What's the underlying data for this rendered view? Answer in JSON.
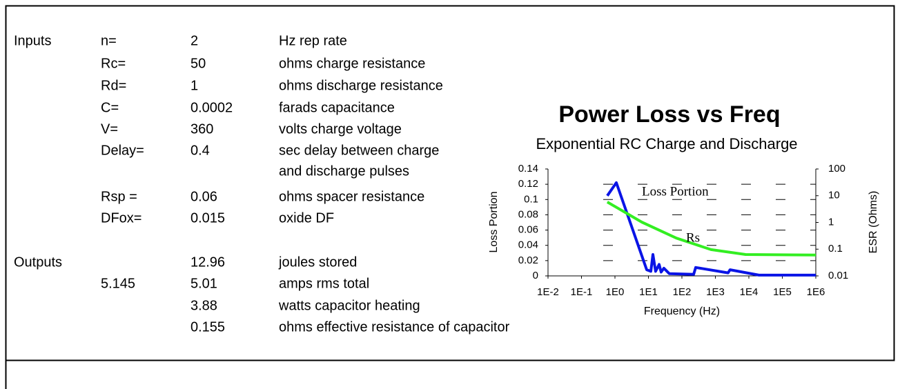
{
  "table": {
    "rows": [
      {
        "group": "Inputs",
        "name": "n=",
        "value": "2",
        "desc": "Hz rep rate"
      },
      {
        "name": "Rc=",
        "value": "50",
        "desc": "ohms charge resistance"
      },
      {
        "name": "Rd=",
        "value": "1",
        "desc": "ohms discharge resistance"
      },
      {
        "name": "C=",
        "value": "0.0002",
        "desc": "farads capacitance"
      },
      {
        "name": "V=",
        "value": "360",
        "desc": "volts charge voltage"
      },
      {
        "name": "Delay=",
        "value": "0.4",
        "desc": "sec delay between charge"
      },
      {
        "desc": " and discharge pulses"
      },
      {
        "name": "Rsp =",
        "value": "0.06",
        "desc": "ohms spacer resistance"
      },
      {
        "name": "DFox=",
        "value": "0.015",
        "desc": "oxide DF"
      },
      {
        "group": "Outputs",
        "value": "12.96",
        "desc": "joules stored"
      },
      {
        "name": "5.145",
        "value": "5.01",
        "desc": "amps rms total"
      },
      {
        "value": "3.88",
        "desc": "watts capacitor heating"
      },
      {
        "value": "0.155",
        "desc": "ohms effective resistance of capacitor"
      }
    ]
  },
  "chart_data": {
    "type": "line",
    "title": "Power Loss vs Freq",
    "subtitle": "Exponential RC Charge and Discharge",
    "x_label": "Frequency (Hz)",
    "y_label": "Loss Portion",
    "y2_label": "ESR (Ohms)",
    "x_log": true,
    "y2_log": true,
    "grid": true,
    "xlim": [
      0.01,
      1000000
    ],
    "xticks": [
      {
        "value": 0.01,
        "label": "1E-2"
      },
      {
        "value": 0.1,
        "label": "1E-1"
      },
      {
        "value": 1,
        "label": "1E0"
      },
      {
        "value": 10,
        "label": "1E1"
      },
      {
        "value": 100,
        "label": "1E2"
      },
      {
        "value": 1000,
        "label": "1E3"
      },
      {
        "value": 10000,
        "label": "1E4"
      },
      {
        "value": 100000,
        "label": "1E5"
      },
      {
        "value": 1000000,
        "label": "1E6"
      }
    ],
    "ylim": [
      0,
      0.14
    ],
    "yticks": [
      0,
      0.02,
      0.04,
      0.06,
      0.08,
      0.1,
      0.12,
      0.14
    ],
    "y2lim": [
      0.01,
      100
    ],
    "y2ticks": [
      0.01,
      0.1,
      1,
      10,
      100
    ],
    "series": [
      {
        "name": "Loss Portion",
        "color": "#0a14e6",
        "x": [
          0.59,
          1.1,
          8.9,
          11.8,
          13.6,
          16.4,
          20.9,
          24,
          29,
          42,
          224,
          259,
          2400,
          2750,
          20000,
          1000000
        ],
        "values": [
          0.105,
          0.122,
          0.008,
          0.006,
          0.028,
          0.006,
          0.015,
          0.005,
          0.01,
          0.003,
          0.002,
          0.011,
          0.004,
          0.008,
          0.001,
          0.001
        ]
      },
      {
        "name": "Rs",
        "color": "#33ee22",
        "axis": "y2",
        "x": [
          0.59,
          6.3,
          68,
          740,
          8000,
          1000000
        ],
        "values": [
          5.8,
          1.03,
          0.26,
          0.096,
          0.063,
          0.06
        ]
      }
    ]
  }
}
